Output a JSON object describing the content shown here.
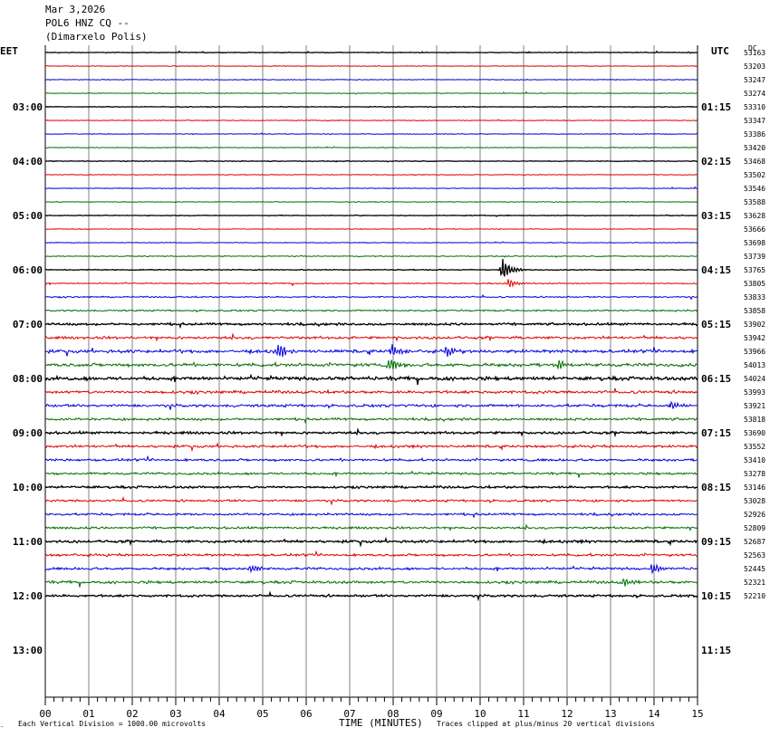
{
  "header": {
    "date": "Mar 3,2026",
    "station": "POL6 HNZ CQ --",
    "location": "(Dimarxelo Polis)"
  },
  "left_tz": "EET",
  "right_tz": "UTC",
  "right_col_header": "DC",
  "footer": {
    "scale_note": "Each Vertical Division = 1000.00 microvolts",
    "axis_title": "TIME (MINUTES)",
    "clip_note": "Traces clipped at plus/minus 20 vertical divisions"
  },
  "colors": {
    "palette": [
      "#000000",
      "#e00000",
      "#0000e0",
      "#007000"
    ],
    "grid": "#808080"
  },
  "chart_data": {
    "type": "line",
    "xlabel": "TIME (MINUTES)",
    "xlim": [
      0,
      15
    ],
    "x_ticks": [
      "00",
      "01",
      "02",
      "03",
      "04",
      "05",
      "06",
      "07",
      "08",
      "09",
      "10",
      "11",
      "12",
      "13",
      "14",
      "15"
    ],
    "left_hour_labels": [
      "03:00",
      "04:00",
      "05:00",
      "06:00",
      "07:00",
      "08:00",
      "09:00",
      "10:00",
      "11:00",
      "12:00",
      "13:00"
    ],
    "right_hour_labels": [
      "01:15",
      "02:15",
      "03:15",
      "04:15",
      "05:15",
      "06:15",
      "07:15",
      "08:15",
      "09:15",
      "10:15",
      "11:15"
    ],
    "dc_offsets": [
      53163,
      53203,
      53247,
      53274,
      53310,
      53347,
      53386,
      53420,
      53468,
      53502,
      53546,
      53588,
      53628,
      53666,
      53698,
      53739,
      53765,
      53805,
      53833,
      53858,
      53902,
      53942,
      53966,
      54013,
      54024,
      53993,
      53921,
      53818,
      53690,
      53552,
      53410,
      53278,
      53146,
      53028,
      52926,
      52809,
      52687,
      52563,
      52445,
      52321,
      52210
    ],
    "noise": [
      0.3,
      0.3,
      0.3,
      0.3,
      0.3,
      0.3,
      0.3,
      0.3,
      0.3,
      0.3,
      0.3,
      0.3,
      0.3,
      0.3,
      0.3,
      0.4,
      0.4,
      0.5,
      0.6,
      0.7,
      1.0,
      1.2,
      1.4,
      1.5,
      1.5,
      1.3,
      1.2,
      1.1,
      1.1,
      1.1,
      1.1,
      1.0,
      1.0,
      1.0,
      1.0,
      1.0,
      1.1,
      1.1,
      1.1,
      1.2,
      1.0
    ],
    "events": [
      {
        "row": 16,
        "minute": 10.5,
        "amplitude": 16
      },
      {
        "row": 17,
        "minute": 10.65,
        "amplitude": 6
      },
      {
        "row": 22,
        "minute": 5.35,
        "amplitude": 10
      },
      {
        "row": 22,
        "minute": 7.95,
        "amplitude": 9
      },
      {
        "row": 22,
        "minute": 9.2,
        "amplitude": 8
      },
      {
        "row": 23,
        "minute": 7.9,
        "amplitude": 10
      },
      {
        "row": 23,
        "minute": 11.8,
        "amplitude": 7
      },
      {
        "row": 26,
        "minute": 14.4,
        "amplitude": 6
      },
      {
        "row": 38,
        "minute": 4.7,
        "amplitude": 6
      },
      {
        "row": 38,
        "minute": 13.95,
        "amplitude": 7
      },
      {
        "row": 39,
        "minute": 13.3,
        "amplitude": 6
      }
    ]
  }
}
